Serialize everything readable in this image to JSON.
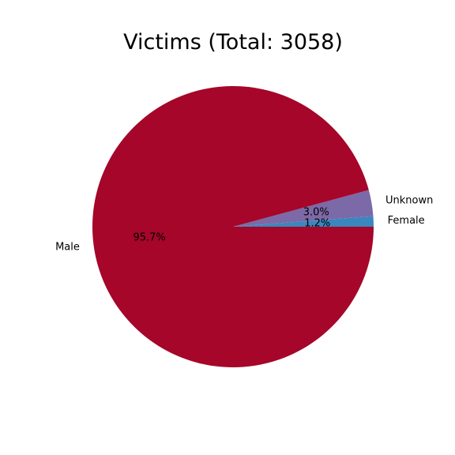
{
  "chart_data": {
    "type": "pie",
    "title": "Victims (Total: 3058)",
    "slices": [
      {
        "label": "Female",
        "value": 1.2,
        "pct_label": "1.2%",
        "color": "#3a87bf"
      },
      {
        "label": "Unknown",
        "value": 3.0,
        "pct_label": "3.0%",
        "color": "#7c69a7"
      },
      {
        "label": "Male",
        "value": 95.7,
        "pct_label": "95.7%",
        "color": "#a50629"
      }
    ],
    "start_angle_deg": 0,
    "direction": "counterclockwise",
    "legend": "none"
  }
}
